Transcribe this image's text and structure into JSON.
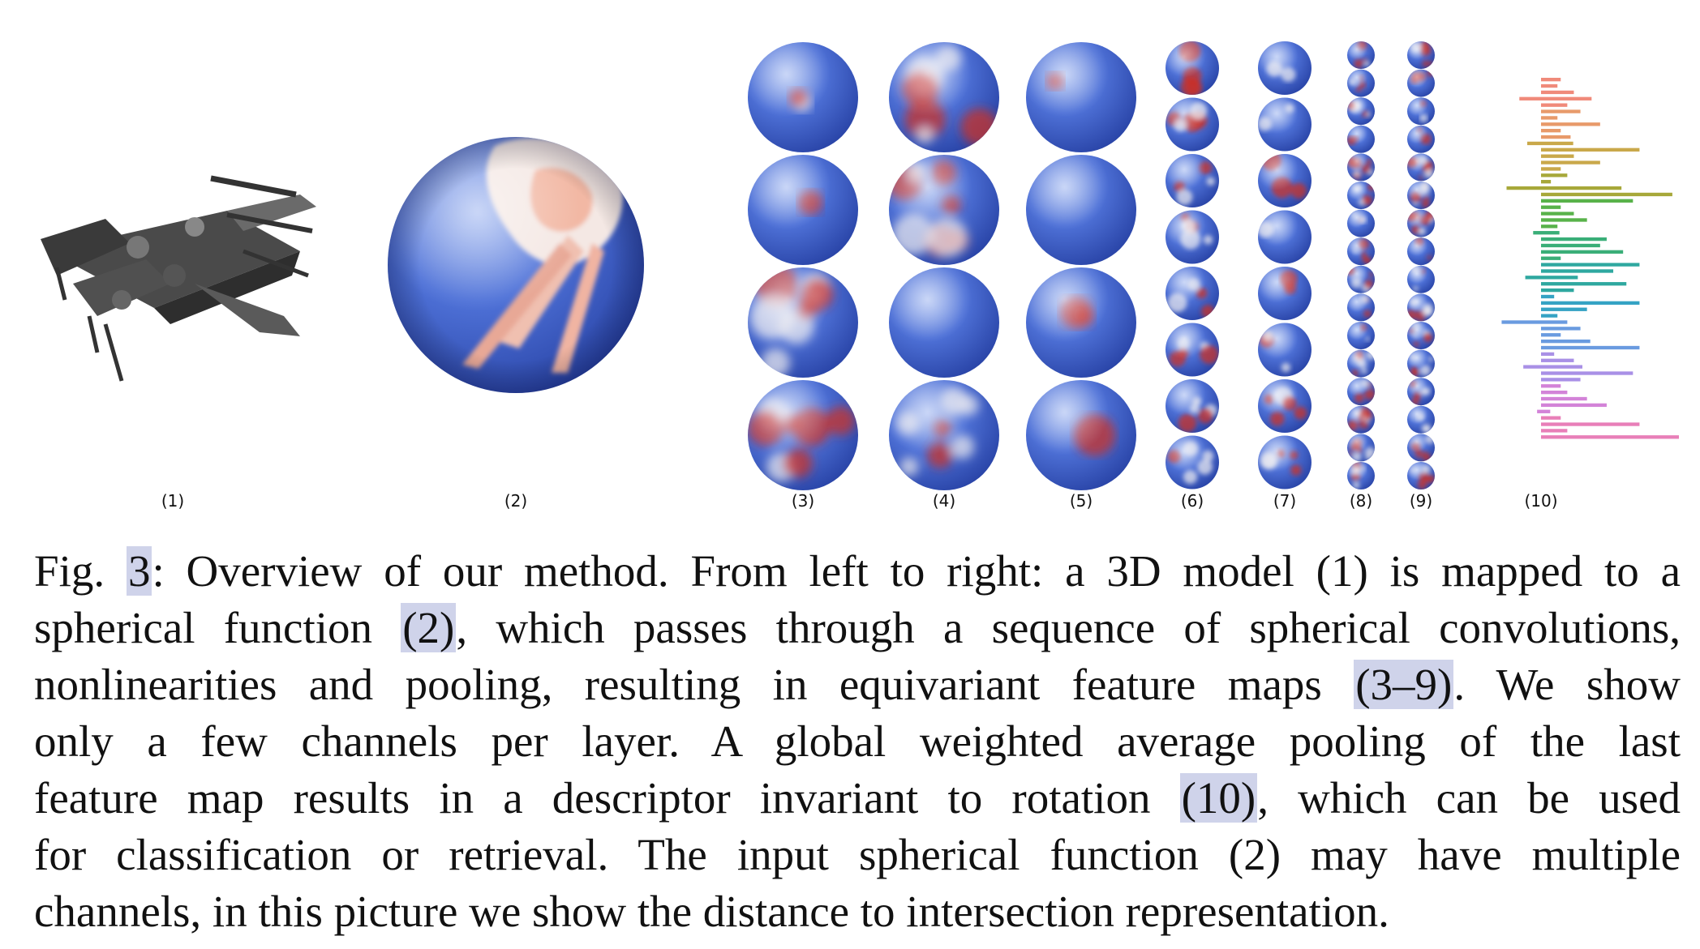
{
  "figure": {
    "panel_labels": [
      "(1)",
      "(2)",
      "(3)",
      "(4)",
      "(5)",
      "(6)",
      "(7)",
      "(8)",
      "(9)",
      "(10)"
    ],
    "colors": {
      "blue": "#3f63d0",
      "mid": "#e6e6ee",
      "red": "#c9302a",
      "bar_palette": [
        "#f08a7a",
        "#e89a6a",
        "#c9a84a",
        "#a7a83a",
        "#58b24a",
        "#3aae78",
        "#2fa8a0",
        "#35a3c4",
        "#6a9be0",
        "#a990e6",
        "#d383d8",
        "#e87fb8"
      ]
    },
    "descriptor_bars": [
      0.06,
      0.05,
      0.1,
      0.22,
      0.08,
      0.12,
      0.05,
      0.18,
      0.06,
      0.09,
      0.14,
      0.3,
      0.1,
      0.18,
      0.06,
      0.08,
      0.03,
      0.35,
      0.4,
      0.28,
      0.06,
      0.1,
      0.14,
      0.05,
      0.08,
      0.2,
      0.18,
      0.25,
      0.06,
      0.3,
      0.22,
      0.16,
      0.26,
      0.1,
      0.04,
      0.3,
      0.14,
      0.05,
      0.2,
      0.12,
      0.06,
      0.15,
      0.3,
      0.04,
      0.1,
      0.18,
      0.28,
      0.12,
      0.06,
      0.08,
      0.14,
      0.2,
      0.04,
      0.06,
      0.3,
      0.08,
      0.42
    ]
  },
  "caption": {
    "lines": [
      [
        "Fig. ",
        {
          "hl": "3"
        },
        ": Overview of our method. From left to right: a 3D model (1) is mapped to a"
      ],
      [
        "spherical function ",
        {
          "hl": "(2)"
        },
        ", which passes through a sequence of spherical convolutions,"
      ],
      [
        "nonlinearities and pooling, resulting in equivariant feature maps ",
        {
          "hl": "(3–9)"
        },
        ". We show"
      ],
      [
        "only a few channels per layer. A global weighted average pooling of the last"
      ],
      [
        "feature map results in a descriptor invariant to rotation ",
        {
          "hl": "(10)"
        },
        ", which can be used"
      ],
      [
        "for classification or retrieval. The input spherical function (2) may have multiple"
      ],
      [
        "channels, in this picture we show the distance to intersection representation."
      ]
    ]
  }
}
